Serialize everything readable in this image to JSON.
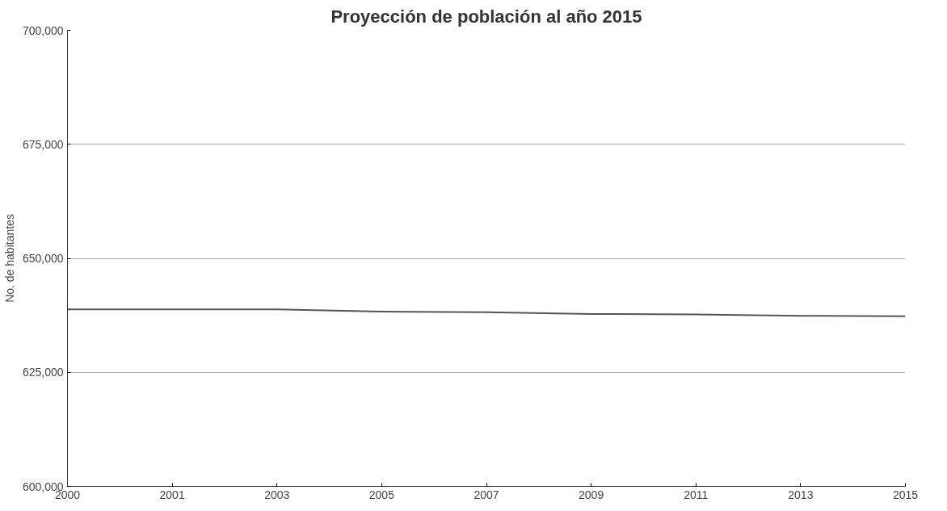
{
  "chart_data": {
    "type": "line",
    "title": "Proyección de población al año 2015",
    "ylabel": "No. de habitantes",
    "categories": [
      "2000",
      "2001",
      "2003",
      "2005",
      "2007",
      "2009",
      "2011",
      "2013",
      "2015"
    ],
    "series": [
      {
        "color": "#555555",
        "values": [
          638800,
          638800,
          638800,
          638300,
          638200,
          637800,
          637700,
          637400,
          637300
        ]
      }
    ],
    "ylim": [
      600000,
      700000
    ],
    "yticks": [
      {
        "value": 600000,
        "label": "600,000"
      },
      {
        "value": 625000,
        "label": "625,000"
      },
      {
        "value": 650000,
        "label": "650,000"
      },
      {
        "value": 675000,
        "label": "675,000"
      },
      {
        "value": 700000,
        "label": "700,000"
      }
    ],
    "grid": "y",
    "marker": "none",
    "line_style": "solid"
  }
}
